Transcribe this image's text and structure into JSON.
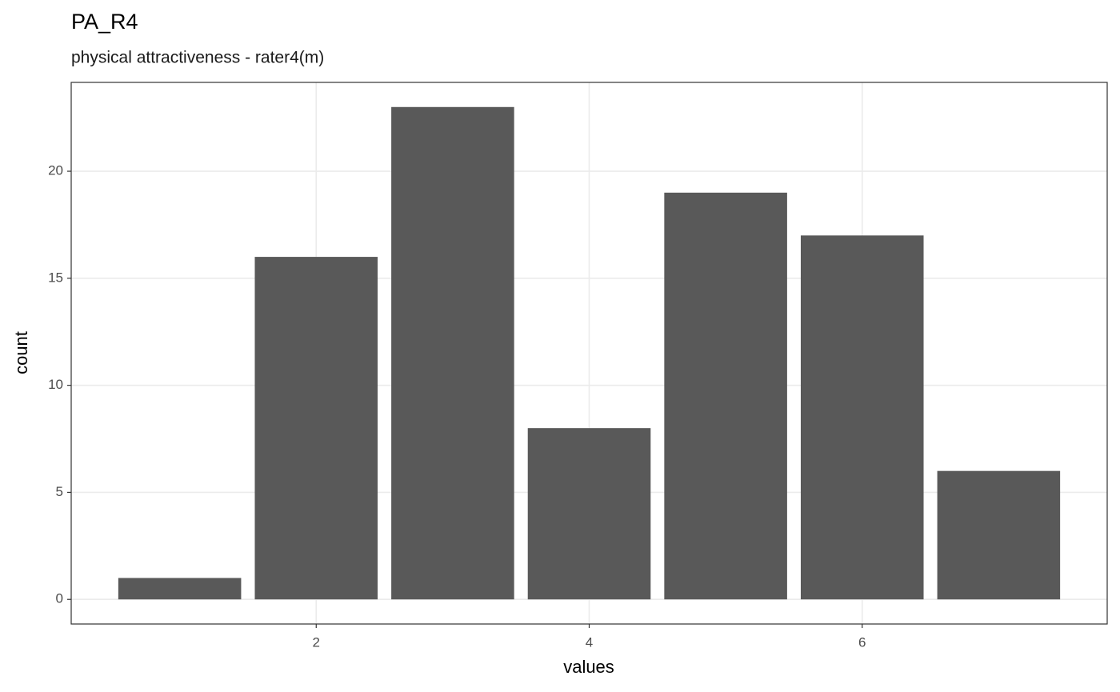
{
  "chart_data": {
    "type": "bar",
    "title": "PA_R4",
    "subtitle": "physical attractiveness - rater4(m)",
    "x_label": "values",
    "y_label": "count",
    "x": [
      1,
      2,
      3,
      4,
      5,
      6,
      7
    ],
    "values": [
      1,
      16,
      23,
      8,
      19,
      17,
      6
    ],
    "color": "#595959",
    "xlim": [
      0.205,
      7.795
    ],
    "xticks": [
      2,
      4,
      6
    ],
    "ylim": [
      -1.15,
      24.15
    ],
    "yticks": [
      0,
      5,
      10,
      15,
      20
    ],
    "grid": true
  }
}
